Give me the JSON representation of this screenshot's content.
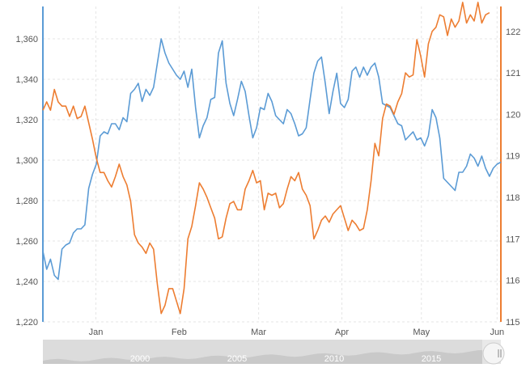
{
  "chart_data": {
    "type": "line",
    "x_ticks": [
      "Jan",
      "Feb",
      "Mar",
      "Apr",
      "May",
      "Jun"
    ],
    "y_left": {
      "ticks": [
        "1,220",
        "1,240",
        "1,260",
        "1,280",
        "1,300",
        "1,320",
        "1,340",
        "1,360"
      ],
      "range": [
        1220,
        1376
      ],
      "color": "#5b9bd5"
    },
    "y_right": {
      "ticks": [
        "115",
        "116",
        "117",
        "118",
        "119",
        "120",
        "121",
        "122"
      ],
      "range": [
        115,
        122.6
      ],
      "color": "#ed7d31"
    },
    "grid": true,
    "series": [
      {
        "axis": "left",
        "color": "#5b9bd5",
        "values": [
          1255,
          1246,
          1251,
          1243,
          1241,
          1256,
          1258,
          1259,
          1264,
          1266,
          1266,
          1268,
          1286,
          1293,
          1298,
          1312,
          1314,
          1313,
          1318,
          1318,
          1315,
          1321,
          1319,
          1333,
          1335,
          1338,
          1329,
          1335,
          1332,
          1336,
          1348,
          1360,
          1353,
          1348,
          1345,
          1342,
          1340,
          1344,
          1336,
          1345,
          1326,
          1311,
          1317,
          1321,
          1330,
          1331,
          1353,
          1359,
          1338,
          1328,
          1322,
          1330,
          1339,
          1334,
          1322,
          1311,
          1316,
          1326,
          1325,
          1333,
          1329,
          1322,
          1320,
          1318,
          1325,
          1323,
          1318,
          1312,
          1313,
          1316,
          1330,
          1343,
          1349,
          1351,
          1338,
          1323,
          1334,
          1343,
          1328,
          1326,
          1330,
          1344,
          1346,
          1341,
          1346,
          1342,
          1346,
          1348,
          1341,
          1328,
          1327,
          1326,
          1322,
          1318,
          1317,
          1310,
          1312,
          1314,
          1310,
          1311,
          1307,
          1312,
          1325,
          1321,
          1311,
          1291,
          1289,
          1287,
          1285,
          1294,
          1294,
          1297,
          1303,
          1301,
          1297,
          1302,
          1296,
          1292,
          1296,
          1298,
          1299
        ]
      },
      {
        "axis": "right",
        "color": "#ed7d31",
        "values": [
          120.1,
          120.3,
          120.1,
          120.6,
          120.3,
          120.2,
          120.2,
          119.95,
          120.2,
          119.9,
          119.95,
          120.2,
          119.8,
          119.4,
          118.95,
          118.6,
          118.6,
          118.4,
          118.25,
          118.5,
          118.8,
          118.5,
          118.3,
          117.9,
          117.1,
          116.9,
          116.8,
          116.65,
          116.9,
          116.75,
          115.9,
          115.2,
          115.4,
          115.8,
          115.8,
          115.5,
          115.2,
          115.8,
          117.0,
          117.3,
          117.8,
          118.35,
          118.2,
          118.0,
          117.75,
          117.5,
          117.0,
          117.05,
          117.5,
          117.85,
          117.9,
          117.7,
          117.7,
          118.2,
          118.4,
          118.65,
          118.35,
          118.4,
          117.7,
          118.1,
          118.05,
          118.1,
          117.75,
          117.85,
          118.2,
          118.5,
          118.4,
          118.6,
          118.2,
          118.05,
          117.8,
          117.0,
          117.2,
          117.45,
          117.55,
          117.4,
          117.6,
          117.7,
          117.8,
          117.5,
          117.2,
          117.45,
          117.35,
          117.2,
          117.25,
          117.7,
          118.4,
          119.3,
          119.0,
          119.9,
          120.25,
          120.2,
          120.0,
          120.3,
          120.5,
          121.0,
          120.9,
          120.95,
          121.8,
          121.4,
          120.9,
          121.7,
          122.0,
          122.1,
          122.4,
          122.35,
          121.9,
          122.3,
          122.1,
          122.25,
          122.7,
          122.2,
          122.4,
          122.25,
          122.7,
          122.2,
          122.4,
          122.45
        ]
      }
    ],
    "navigator": {
      "labels": [
        "2000",
        "2005",
        "2010",
        "2015"
      ]
    }
  }
}
